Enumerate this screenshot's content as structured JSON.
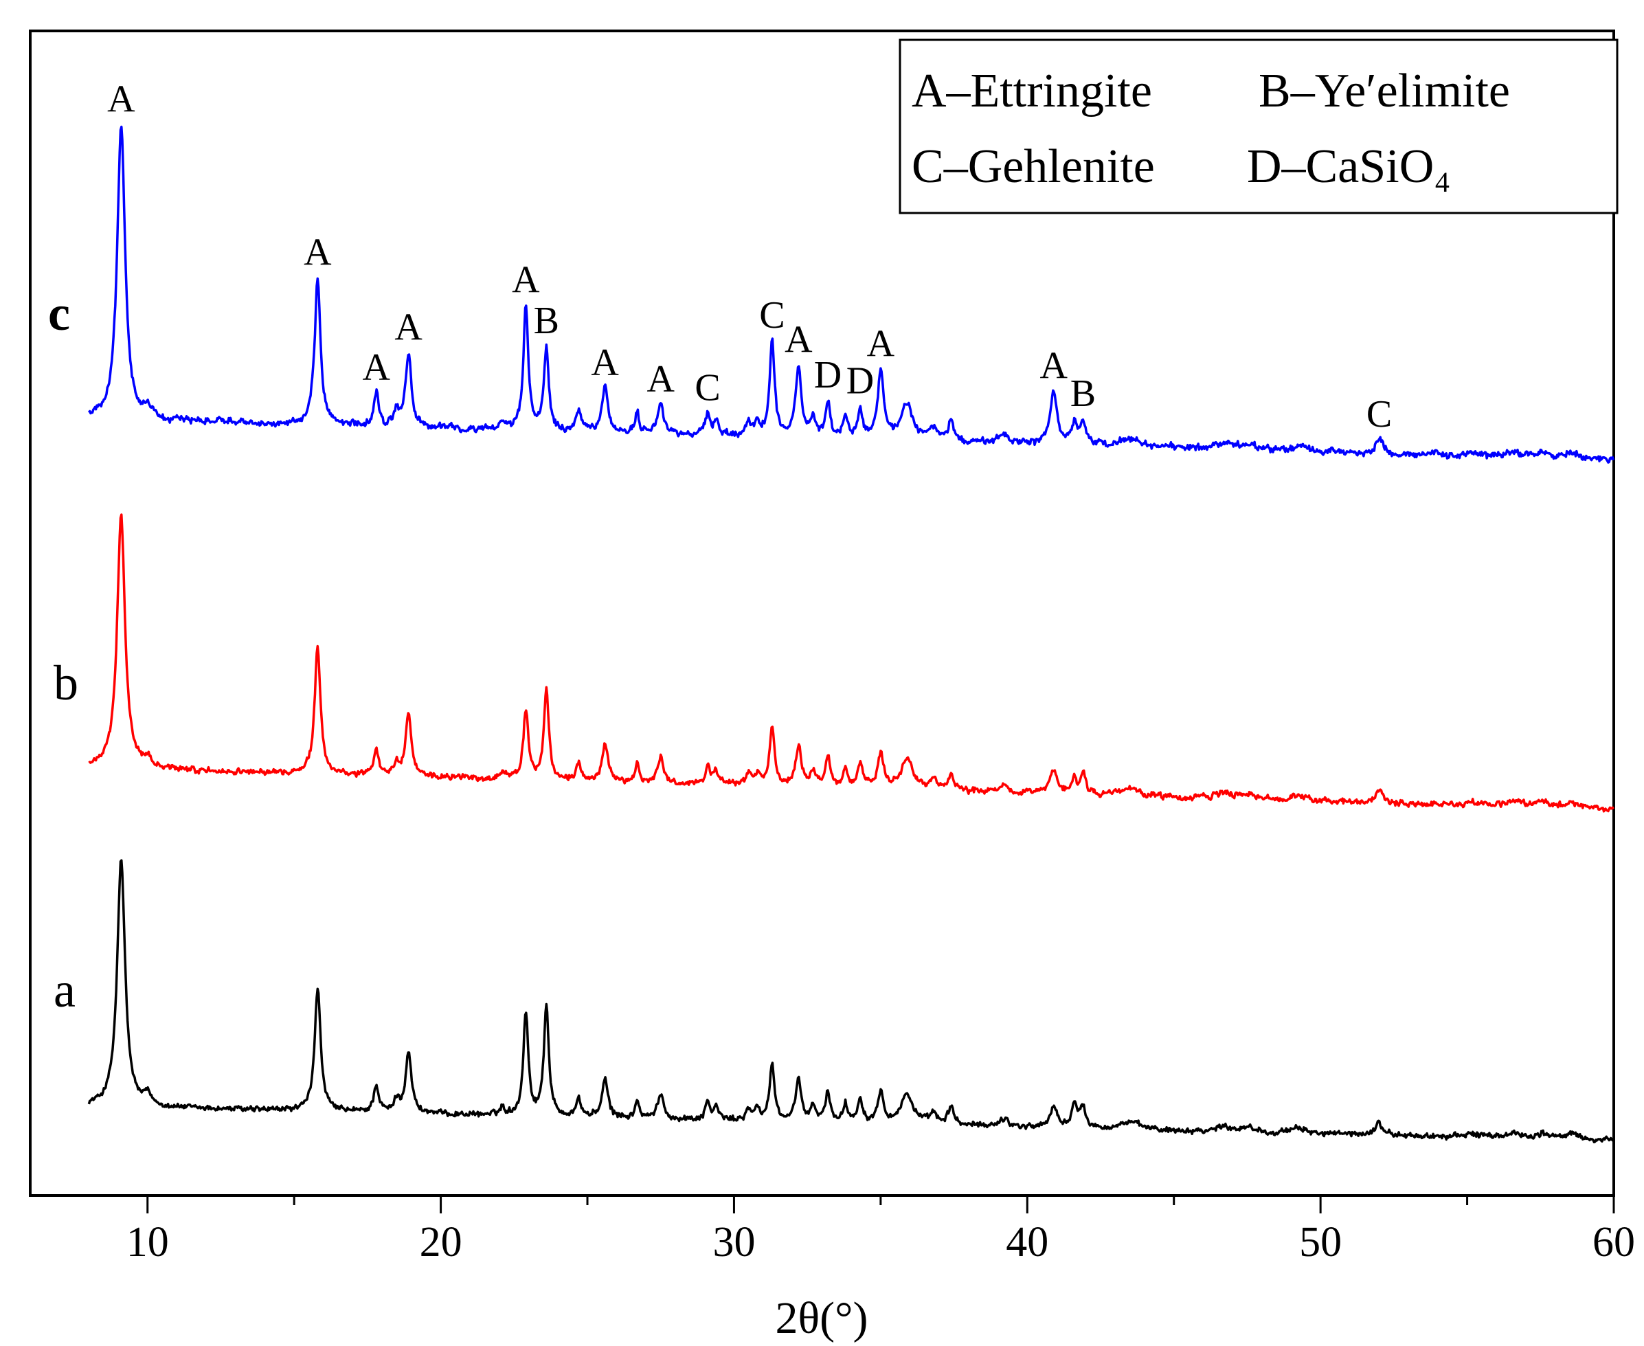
{
  "chart_data": {
    "type": "line",
    "title": "",
    "xlabel": "2θ(°)",
    "ylabel": "",
    "xlim": [
      6,
      60
    ],
    "xticks": [
      10,
      20,
      30,
      40,
      50,
      60
    ],
    "grid": false,
    "legend": {
      "placement": "top-right",
      "rows": [
        [
          "A–Ettringite",
          "B–Ye′elimite"
        ],
        [
          "C–Gehlenite",
          "D–CaSiO₄"
        ]
      ]
    },
    "colors": {
      "a": "#000000",
      "b": "#ff0000",
      "c": "#0000ff"
    },
    "peaks": [
      {
        "phase": "A",
        "two_theta": 9.1,
        "intensity": 1.0,
        "width": 0.16
      },
      {
        "phase": "",
        "two_theta": 10.0,
        "intensity": 0.04,
        "width": 0.15
      },
      {
        "phase": "A",
        "two_theta": 15.8,
        "intensity": 0.5,
        "width": 0.12
      },
      {
        "phase": "A",
        "two_theta": 17.8,
        "intensity": 0.11,
        "width": 0.1
      },
      {
        "phase": "",
        "two_theta": 18.5,
        "intensity": 0.05,
        "width": 0.1
      },
      {
        "phase": "A",
        "two_theta": 18.9,
        "intensity": 0.25,
        "width": 0.12
      },
      {
        "phase": "",
        "two_theta": 22.1,
        "intensity": 0.03,
        "width": 0.1
      },
      {
        "phase": "A",
        "two_theta": 22.9,
        "intensity": 0.42,
        "width": 0.1
      },
      {
        "phase": "B",
        "two_theta": 23.6,
        "intensity": 0.28,
        "width": 0.1
      },
      {
        "phase": "",
        "two_theta": 24.7,
        "intensity": 0.07,
        "width": 0.1
      },
      {
        "phase": "A",
        "two_theta": 25.6,
        "intensity": 0.15,
        "width": 0.12
      },
      {
        "phase": "",
        "two_theta": 26.7,
        "intensity": 0.07,
        "width": 0.08
      },
      {
        "phase": "A",
        "two_theta": 27.5,
        "intensity": 0.1,
        "width": 0.12
      },
      {
        "phase": "C",
        "two_theta": 29.1,
        "intensity": 0.07,
        "width": 0.1
      },
      {
        "phase": "",
        "two_theta": 29.4,
        "intensity": 0.05,
        "width": 0.1
      },
      {
        "phase": "",
        "two_theta": 30.5,
        "intensity": 0.04,
        "width": 0.12
      },
      {
        "phase": "",
        "two_theta": 30.8,
        "intensity": 0.04,
        "width": 0.12
      },
      {
        "phase": "C",
        "two_theta": 31.3,
        "intensity": 0.32,
        "width": 0.1
      },
      {
        "phase": "A",
        "two_theta": 32.2,
        "intensity": 0.24,
        "width": 0.12
      },
      {
        "phase": "",
        "two_theta": 32.7,
        "intensity": 0.06,
        "width": 0.1
      },
      {
        "phase": "D",
        "two_theta": 33.2,
        "intensity": 0.12,
        "width": 0.1
      },
      {
        "phase": "",
        "two_theta": 33.8,
        "intensity": 0.07,
        "width": 0.1
      },
      {
        "phase": "D",
        "two_theta": 34.3,
        "intensity": 0.1,
        "width": 0.1
      },
      {
        "phase": "A",
        "two_theta": 35.0,
        "intensity": 0.23,
        "width": 0.12
      },
      {
        "phase": "",
        "two_theta": 35.9,
        "intensity": 0.12,
        "width": 0.25
      },
      {
        "phase": "",
        "two_theta": 36.8,
        "intensity": 0.04,
        "width": 0.15
      },
      {
        "phase": "",
        "two_theta": 37.4,
        "intensity": 0.07,
        "width": 0.12
      },
      {
        "phase": "",
        "two_theta": 39.2,
        "intensity": 0.03,
        "width": 0.2
      },
      {
        "phase": "A",
        "two_theta": 40.9,
        "intensity": 0.18,
        "width": 0.15
      },
      {
        "phase": "",
        "two_theta": 41.6,
        "intensity": 0.07,
        "width": 0.1
      },
      {
        "phase": "B",
        "two_theta": 41.9,
        "intensity": 0.08,
        "width": 0.12
      },
      {
        "phase": "",
        "two_theta": 43.5,
        "intensity": 0.03,
        "width": 0.4
      },
      {
        "phase": "",
        "two_theta": 46.7,
        "intensity": 0.02,
        "width": 0.3
      },
      {
        "phase": "",
        "two_theta": 47.5,
        "intensity": 0.02,
        "width": 0.3
      },
      {
        "phase": "",
        "two_theta": 49.3,
        "intensity": 0.02,
        "width": 0.3
      },
      {
        "phase": "C",
        "two_theta": 52.0,
        "intensity": 0.05,
        "width": 0.15
      },
      {
        "phase": "",
        "two_theta": 55.2,
        "intensity": 0.015,
        "width": 0.3
      },
      {
        "phase": "",
        "two_theta": 56.6,
        "intensity": 0.02,
        "width": 0.3
      },
      {
        "phase": "",
        "two_theta": 57.6,
        "intensity": 0.02,
        "width": 0.3
      },
      {
        "phase": "",
        "two_theta": 58.6,
        "intensity": 0.02,
        "width": 0.3
      }
    ],
    "series": [
      {
        "name": "a",
        "color": "#000000",
        "x_range": [
          8,
          60
        ],
        "overrides": {
          "23.6": 0.45,
          "31.3": 0.23,
          "32.2": 0.16,
          "35.0": 0.13,
          "40.9": 0.08,
          "41.6": 0.1
        }
      },
      {
        "name": "b",
        "color": "#ff0000",
        "x_range": [
          8,
          60
        ],
        "overrides": {
          "22.9": 0.27,
          "23.6": 0.35,
          "31.3": 0.23,
          "32.2": 0.16,
          "35.0": 0.13,
          "40.9": 0.09,
          "41.6": 0.06
        }
      },
      {
        "name": "c",
        "color": "#0000ff",
        "x_range": [
          8,
          60
        ],
        "overrides": {}
      }
    ],
    "annotations": [
      {
        "text": "A",
        "two_theta": 9.1,
        "series": "c"
      },
      {
        "text": "A",
        "two_theta": 15.8,
        "series": "c"
      },
      {
        "text": "A",
        "two_theta": 17.8,
        "series": "c"
      },
      {
        "text": "A",
        "two_theta": 18.9,
        "series": "c"
      },
      {
        "text": "A",
        "two_theta": 22.9,
        "series": "c"
      },
      {
        "text": "B",
        "two_theta": 23.6,
        "series": "c"
      },
      {
        "text": "A",
        "two_theta": 25.6,
        "series": "c"
      },
      {
        "text": "A",
        "two_theta": 27.5,
        "series": "c"
      },
      {
        "text": "C",
        "two_theta": 29.1,
        "series": "c"
      },
      {
        "text": "C",
        "two_theta": 31.3,
        "series": "c"
      },
      {
        "text": "A",
        "two_theta": 32.2,
        "series": "c"
      },
      {
        "text": "D",
        "two_theta": 33.2,
        "series": "c"
      },
      {
        "text": "D",
        "two_theta": 34.3,
        "series": "c"
      },
      {
        "text": "A",
        "two_theta": 35.0,
        "series": "c"
      },
      {
        "text": "A",
        "two_theta": 40.9,
        "series": "c"
      },
      {
        "text": "B",
        "two_theta": 41.9,
        "series": "c"
      },
      {
        "text": "C",
        "two_theta": 52.0,
        "series": "c"
      }
    ]
  }
}
